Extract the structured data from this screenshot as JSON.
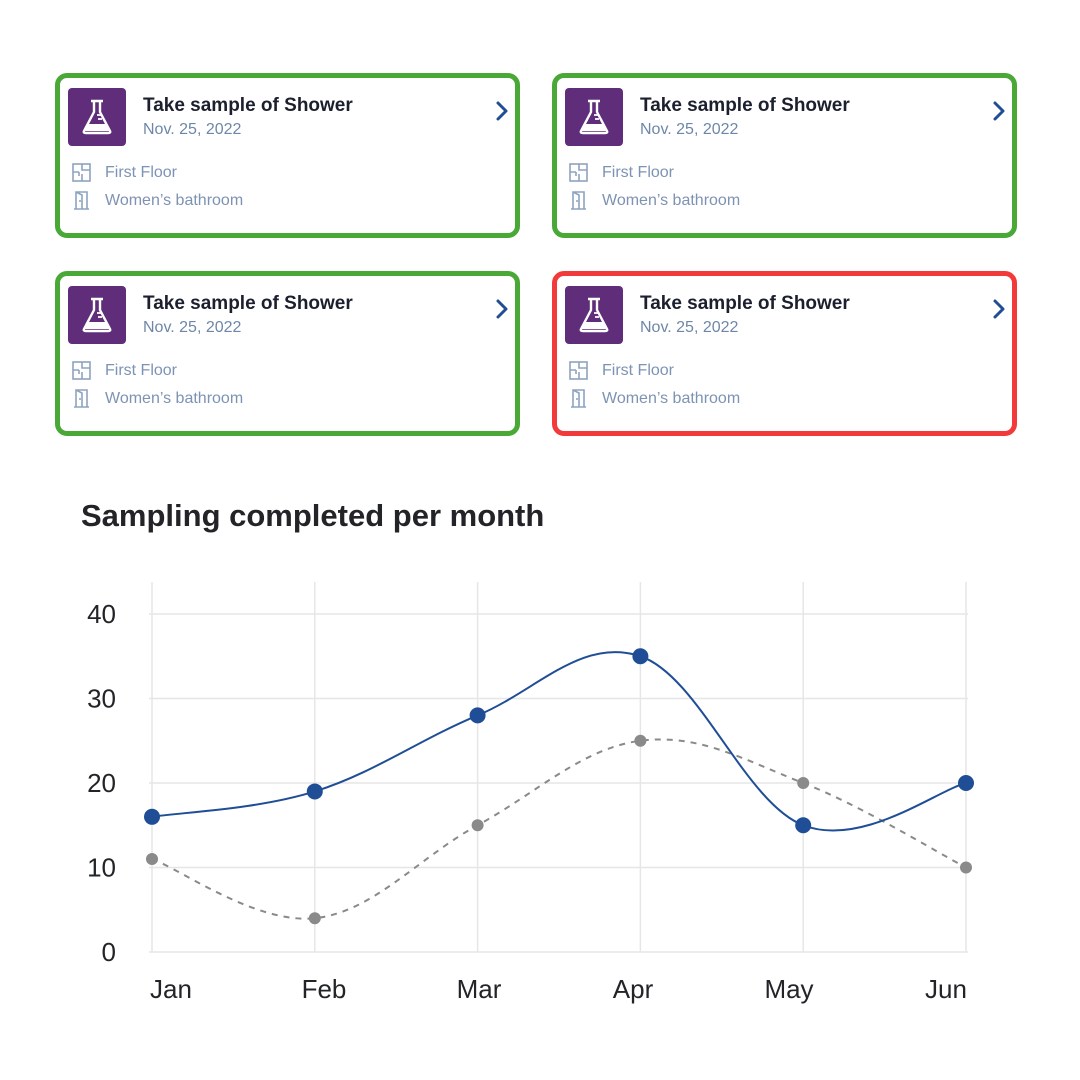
{
  "colors": {
    "ok_border": "#49a836",
    "error_border": "#f23a3a",
    "icon_bg": "#5f2d7a",
    "series_primary": "#1f4e96",
    "series_secondary": "#8a8a8a"
  },
  "cards": [
    {
      "title": "Take sample of Shower",
      "date": "Nov. 25, 2022",
      "floor": "First Floor",
      "room": "Women’s bathroom",
      "status": "ok",
      "icon": "flask-icon"
    },
    {
      "title": "Take sample of Shower",
      "date": "Nov. 25, 2022",
      "floor": "First Floor",
      "room": "Women’s bathroom",
      "status": "ok",
      "icon": "flask-icon"
    },
    {
      "title": "Take sample of Shower",
      "date": "Nov. 25, 2022",
      "floor": "First Floor",
      "room": "Women’s bathroom",
      "status": "ok",
      "icon": "flask-icon"
    },
    {
      "title": "Take sample of Shower",
      "date": "Nov. 25, 2022",
      "floor": "First Floor",
      "room": "Women’s bathroom",
      "status": "error",
      "icon": "flask-icon"
    }
  ],
  "chart_data": {
    "type": "line",
    "title": "Sampling completed per month",
    "categories": [
      "Jan",
      "Feb",
      "Mar",
      "Apr",
      "May",
      "Jun"
    ],
    "series": [
      {
        "values": [
          16,
          19,
          28,
          35,
          15,
          20
        ],
        "style": "solid"
      },
      {
        "values": [
          11,
          4,
          15,
          25,
          20,
          10
        ],
        "style": "dashed"
      }
    ],
    "ylim": [
      0,
      40
    ],
    "yticks": [
      0,
      10,
      20,
      30,
      40
    ],
    "grid": true
  }
}
